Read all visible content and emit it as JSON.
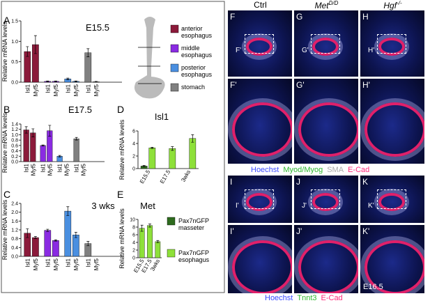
{
  "chart_data": [
    {
      "type": "bar",
      "panel": "A",
      "title": "E15.5",
      "ylabel": "Relative mRNA levels",
      "categories": [
        "Isl1",
        "Myf5",
        "Isl1",
        "Myf5",
        "Isl1",
        "Myf5",
        "Isl1",
        "Myf5"
      ],
      "values": [
        0.75,
        0.92,
        0.02,
        0.02,
        0.08,
        0.02,
        0.72,
        0.01
      ],
      "errors": [
        0.12,
        0.22,
        0.01,
        0.01,
        0.02,
        0.01,
        0.1,
        0.01
      ],
      "colors": [
        "#8b1a3a",
        "#8b1a3a",
        "#8a2be2",
        "#8a2be2",
        "#4a8fe0",
        "#4a8fe0",
        "#808080",
        "#808080"
      ],
      "ylim": [
        0,
        1.5
      ],
      "yticks": [
        {
          "value": 0,
          "label": "0.0"
        },
        0.5,
        {
          "value": 1,
          "label": "1.0"
        },
        1.5
      ]
    },
    {
      "type": "bar",
      "panel": "B",
      "title": "E17.5",
      "ylabel": "Relative mRNA levels",
      "categories": [
        "Isl1",
        "Myf5",
        "Isl1",
        "Myf5",
        "Isl1",
        "Myf5",
        "Isl1",
        "Myf5"
      ],
      "values": [
        1.18,
        1.07,
        0.6,
        1.15,
        0.2,
        0,
        0.85,
        0
      ],
      "errors": [
        0.12,
        0.15,
        0.02,
        0.2,
        0.03,
        0,
        0.05,
        0
      ],
      "colors": [
        "#8b1a3a",
        "#8b1a3a",
        "#8a2be2",
        "#8a2be2",
        "#4a8fe0",
        "#4a8fe0",
        "#808080",
        "#808080"
      ],
      "ylim": [
        0,
        1.4
      ],
      "yticks": [
        {
          "value": 0,
          "label": "0.0"
        },
        0.2,
        0.4,
        0.6,
        0.8,
        {
          "value": 1,
          "label": "1.0"
        },
        1.2,
        1.4
      ]
    },
    {
      "type": "bar",
      "panel": "C",
      "title": "3 wks",
      "ylabel": "Relative mRNA levels",
      "categories": [
        "Isl1",
        "Myf5",
        "Isl1",
        "Myf5",
        "Isl1",
        "Myf5",
        "Isl1",
        "Myf5"
      ],
      "values": [
        1.05,
        0.85,
        1.18,
        0.72,
        2.05,
        0.97,
        0.58,
        0
      ],
      "errors": [
        0.2,
        0.05,
        0.05,
        0.03,
        0.2,
        0.12,
        0.1,
        0
      ],
      "colors": [
        "#8b1a3a",
        "#8b1a3a",
        "#8a2be2",
        "#8a2be2",
        "#4a8fe0",
        "#4a8fe0",
        "#808080",
        "#808080"
      ],
      "ylim": [
        0,
        2.4
      ],
      "yticks": [
        {
          "value": 0,
          "label": "0.0"
        },
        0.4,
        0.8,
        1.2,
        1.6,
        {
          "value": 2,
          "label": "2.0"
        },
        2.4
      ]
    },
    {
      "type": "bar",
      "panel": "D",
      "title": "Isl1",
      "ylabel": "Relative mRNA levels",
      "categories": [
        "E15.5",
        "E17.5",
        "3wks"
      ],
      "series": [
        {
          "name": "Pax7nGFP masseter",
          "color": "#2e6b1e",
          "values": [
            0.4,
            null,
            null
          ],
          "errors": [
            0.1,
            null,
            null
          ]
        },
        {
          "name": "Pax7nGFP esophagus",
          "color": "#8ee03a",
          "values": [
            3.3,
            3.2,
            4.8
          ],
          "errors": [
            0.1,
            0.3,
            0.6
          ]
        }
      ],
      "ylim": [
        0,
        6
      ],
      "yticks": [
        0,
        2,
        4,
        6
      ]
    },
    {
      "type": "bar",
      "panel": "E",
      "title": "Met",
      "ylabel": "Relative mRNA levels",
      "categories": [
        "E15.5",
        "E17.5",
        "3wks"
      ],
      "series": [
        {
          "name": "Pax7nGFP esophagus",
          "color": "#8ee03a",
          "values": [
            7.7,
            8.4,
            4.2
          ],
          "errors": [
            0.8,
            0.4,
            0.3
          ]
        }
      ],
      "ylim": [
        0,
        10
      ],
      "yticks": [
        0,
        2,
        4,
        6,
        8,
        10
      ]
    }
  ],
  "region_legend": [
    {
      "name": "anterior esophagus",
      "color": "#8b1a3a"
    },
    {
      "name": "middle esophagus",
      "color": "#8a2be2"
    },
    {
      "name": "posterior esophagus",
      "color": "#4a8fe0"
    },
    {
      "name": "stomach",
      "color": "#808080"
    }
  ],
  "columns": [
    {
      "text": "Ctrl"
    },
    {
      "text": "Met",
      "sup": "D/D"
    },
    {
      "text": "Hgf",
      "sup": "-/-"
    }
  ],
  "panels": [
    {
      "letter": "F",
      "inset": "F'"
    },
    {
      "letter": "G",
      "inset": "G'"
    },
    {
      "letter": "H",
      "inset": "H'"
    },
    {
      "letter": "F'"
    },
    {
      "letter": "G'"
    },
    {
      "letter": "H'"
    },
    {
      "letter": "I",
      "inset": "I'"
    },
    {
      "letter": "J",
      "inset": "J'"
    },
    {
      "letter": "K",
      "inset": "K'"
    },
    {
      "letter": "I'"
    },
    {
      "letter": "J'"
    },
    {
      "letter": "K'",
      "note": "E16.5"
    }
  ],
  "stains_top": [
    {
      "text": "Hoechst",
      "color": "#3b4bff"
    },
    {
      "text": "Myod/Myog",
      "color": "#2fb82f"
    },
    {
      "text": "SMA",
      "color": "#aaaaaa"
    },
    {
      "text": "E-Cad",
      "color": "#ff2a7a"
    }
  ],
  "stains_bottom": [
    {
      "text": "Hoechst",
      "color": "#3b4bff"
    },
    {
      "text": "Tnnt3",
      "color": "#2fb82f"
    },
    {
      "text": "E-Cad",
      "color": "#ff2a7a"
    }
  ]
}
